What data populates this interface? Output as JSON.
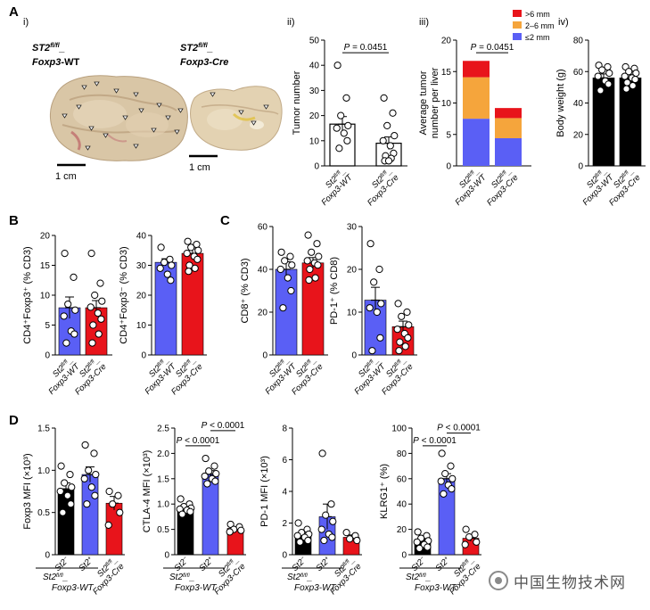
{
  "panel_labels": {
    "A": "A",
    "B": "B",
    "C": "C",
    "D": "D"
  },
  "subpanel_labels": {
    "i": "i)",
    "ii": "ii)",
    "iii": "iii)",
    "iv": "iv)"
  },
  "photos": {
    "left_genotype_line1": "ST2",
    "left_genotype_sup": "fl/fl",
    "left_genotype_suffix": "_",
    "left_genotype_line2": "Foxp3",
    "left_genotype_line2_suffix": "-WT",
    "right_genotype_line1": "ST2",
    "right_genotype_sup": "fl/fl",
    "right_genotype_suffix": "_",
    "right_genotype_line2": "Foxp3-Cre",
    "scale_label_left": "1 cm",
    "scale_label_right": "1 cm"
  },
  "group_labels": {
    "st2_wt": {
      "line1": "St2",
      "sup": "fl/fl",
      "suffix": "_",
      "line2": "Foxp3-WT"
    },
    "st2_cre": {
      "line1": "St2",
      "sup": "fl/fl",
      "suffix": "_",
      "line2": "Foxp3-Cre"
    },
    "st2_minus": {
      "base": "St2",
      "sup": "−"
    },
    "st2_plus": {
      "base": "St2",
      "sup": "+"
    },
    "d_under_line1": "St2",
    "d_under_sup": "fl/fl",
    "d_under_suffix": "_",
    "d_under_line2": "Foxp3-WT"
  },
  "colors": {
    "wt_blue": "#5a5ff5",
    "cre_red": "#e8141b",
    "black": "#000000",
    "orange": "#f5a53c",
    "bar_open": "#ffffff"
  },
  "watermark": {
    "icon": "wechat-circle-icon",
    "text": "中国生物技术网"
  },
  "chart_data": [
    {
      "id": "A_ii",
      "type": "bar",
      "ylabel": "Tumor  number",
      "ylim": [
        0,
        50
      ],
      "yticks": [
        0,
        10,
        20,
        30,
        40,
        50
      ],
      "categories": [
        "St2fl/fl_Foxp3-WT",
        "St2fl/fl_Foxp3-Cre"
      ],
      "series": [
        {
          "values": [
            16.6,
            9.0
          ],
          "sem": [
            3.0,
            2.5
          ],
          "fills": [
            "#ffffff",
            "#ffffff"
          ],
          "points": [
            [
              40,
              27,
              20,
              16,
              15,
              13,
              10,
              7
            ],
            [
              27,
              21,
              16,
              12,
              10,
              8,
              5,
              4,
              3,
              2,
              2
            ]
          ]
        }
      ],
      "annotations": [
        {
          "text": "P = 0.0451",
          "between": [
            0,
            1
          ],
          "y": 45
        }
      ]
    },
    {
      "id": "A_iii",
      "type": "bar",
      "stacked": true,
      "ylabel": "Average tumor number per liver",
      "ylim": [
        0,
        20
      ],
      "yticks": [
        0,
        5,
        10,
        15,
        20
      ],
      "categories": [
        "St2fl/fl_Foxp3-WT",
        "St2fl/fl_Foxp3-Cre"
      ],
      "series": [
        {
          "name": "≤2 mm",
          "color": "#5a5ff5",
          "values": [
            7.5,
            4.4
          ]
        },
        {
          "name": "2–6 mm",
          "color": "#f5a53c",
          "values": [
            6.6,
            3.2
          ]
        },
        {
          "name": ">6 mm",
          "color": "#e8141b",
          "values": [
            2.6,
            1.6
          ]
        }
      ],
      "legend": "top-right",
      "annotations": [
        {
          "text": "P = 0.0451",
          "between": [
            0,
            1
          ],
          "y": 18
        }
      ]
    },
    {
      "id": "A_iv",
      "type": "bar",
      "ylabel": "Body weight (g)",
      "ylim": [
        0,
        80
      ],
      "yticks": [
        0,
        20,
        40,
        60,
        80
      ],
      "categories": [
        "St2fl/fl_Foxp3-WT",
        "St2fl/fl_Foxp3-Cre"
      ],
      "series": [
        {
          "values": [
            56,
            56
          ],
          "sem": [
            2.5,
            2.0
          ],
          "fills": [
            "#000000",
            "#000000"
          ],
          "points": [
            [
              64,
              63,
              61,
              59,
              57,
              54,
              52,
              48
            ],
            [
              63,
              62,
              60,
              59,
              57,
              56,
              55,
              53,
              51,
              49
            ]
          ]
        }
      ]
    },
    {
      "id": "B_1",
      "type": "bar",
      "ylabel": "CD4⁺Foxp3⁺ (% CD3)",
      "ylim": [
        0,
        20
      ],
      "yticks": [
        0,
        5,
        10,
        15,
        20
      ],
      "categories": [
        "St2fl/fl_Foxp3-WT",
        "St2fl/fl_Foxp3-Cre"
      ],
      "series": [
        {
          "values": [
            7.9,
            7.9
          ],
          "sem": [
            1.8,
            1.2
          ],
          "fills": [
            "#5a5ff5",
            "#e8141b"
          ],
          "points": [
            [
              17,
              13,
              8.5,
              7.5,
              6.5,
              4,
              3.5,
              2
            ],
            [
              17,
              12,
              10,
              9,
              8,
              7,
              6,
              5,
              3.5,
              2
            ]
          ]
        }
      ]
    },
    {
      "id": "B_2",
      "type": "bar",
      "ylabel": "CD4⁺Foxp3⁻ (% CD3)",
      "ylim": [
        0,
        40
      ],
      "yticks": [
        0,
        10,
        20,
        30,
        40
      ],
      "categories": [
        "St2fl/fl_Foxp3-WT",
        "St2fl/fl_Foxp3-Cre"
      ],
      "series": [
        {
          "values": [
            31,
            34
          ],
          "sem": [
            1.2,
            1.5
          ],
          "fills": [
            "#5a5ff5",
            "#e8141b"
          ],
          "points": [
            [
              36,
              32,
              31,
              30,
              29,
              27,
              25
            ],
            [
              38,
              37,
              36,
              35,
              34,
              33,
              32,
              30,
              29,
              28
            ]
          ]
        }
      ]
    },
    {
      "id": "C_1",
      "type": "bar",
      "ylabel": "CD8⁺ (% CD3)",
      "ylim": [
        0,
        60
      ],
      "yticks": [
        0,
        20,
        40,
        60
      ],
      "categories": [
        "St2fl/fl_Foxp3-WT",
        "St2fl/fl_Foxp3-Cre"
      ],
      "series": [
        {
          "values": [
            40,
            43
          ],
          "sem": [
            3.5,
            2.5
          ],
          "fills": [
            "#5a5ff5",
            "#e8141b"
          ],
          "points": [
            [
              48,
              46,
              44,
              42,
              40,
              36,
              30,
              22
            ],
            [
              56,
              52,
              48,
              46,
              44,
              43,
              42,
              40,
              36,
              35
            ]
          ]
        }
      ]
    },
    {
      "id": "C_2",
      "type": "bar",
      "ylabel": "PD-1⁺ (% CD8)",
      "ylim": [
        0,
        30
      ],
      "yticks": [
        0,
        10,
        20,
        30
      ],
      "categories": [
        "St2fl/fl_Foxp3-WT",
        "St2fl/fl_Foxp3-Cre"
      ],
      "series": [
        {
          "values": [
            12.8,
            6.6
          ],
          "sem": [
            3.0,
            1.3
          ],
          "fills": [
            "#5a5ff5",
            "#e8141b"
          ],
          "points": [
            [
              26,
              20,
              17,
              12,
              11,
              10,
              4,
              1
            ],
            [
              12,
              10,
              9,
              7,
              6,
              5,
              4,
              3,
              2,
              1
            ]
          ]
        }
      ]
    },
    {
      "id": "D_1",
      "type": "bar",
      "ylabel": "Foxp3 MFI (×10³)",
      "ylim": [
        0,
        1.5
      ],
      "yticks": [
        0,
        0.5,
        1.0,
        1.5
      ],
      "categories": [
        "St2−",
        "St2+",
        "St2fl/fl_Foxp3-Cre"
      ],
      "series": [
        {
          "values": [
            0.78,
            0.95,
            0.61
          ],
          "sem": [
            0.07,
            0.09,
            0.08
          ],
          "fills": [
            "#000000",
            "#5a5ff5",
            "#e8141b"
          ],
          "points": [
            [
              1.05,
              0.95,
              0.85,
              0.8,
              0.75,
              0.7,
              0.6,
              0.5
            ],
            [
              1.3,
              1.2,
              1.0,
              0.95,
              0.9,
              0.8,
              0.7,
              0.6
            ],
            [
              0.75,
              0.7,
              0.6,
              0.5,
              0.35
            ]
          ]
        }
      ]
    },
    {
      "id": "D_2",
      "type": "bar",
      "ylabel": "CTLA-4 MFI (×10³)",
      "ylim": [
        0,
        2.5
      ],
      "yticks": [
        0,
        0.5,
        1.0,
        1.5,
        2.0,
        2.5
      ],
      "categories": [
        "St2−",
        "St2+",
        "St2fl/fl_Foxp3-Cre"
      ],
      "series": [
        {
          "values": [
            0.93,
            1.59,
            0.52
          ],
          "sem": [
            0.04,
            0.07,
            0.03
          ],
          "fills": [
            "#000000",
            "#5a5ff5",
            "#e8141b"
          ],
          "points": [
            [
              1.1,
              1.0,
              0.95,
              0.92,
              0.9,
              0.88,
              0.85,
              0.8
            ],
            [
              1.9,
              1.75,
              1.65,
              1.6,
              1.55,
              1.5,
              1.45,
              1.4
            ],
            [
              0.6,
              0.55,
              0.5,
              0.48,
              0.45
            ]
          ]
        }
      ],
      "annotations": [
        {
          "text": "P < 0.0001",
          "between": [
            0,
            1
          ],
          "y": 2.15
        },
        {
          "text": "P < 0.0001",
          "between": [
            1,
            2
          ],
          "y": 2.45
        }
      ]
    },
    {
      "id": "D_3",
      "type": "bar",
      "ylabel": "PD-1 MFI (×10³)",
      "ylim": [
        0,
        8
      ],
      "yticks": [
        0,
        2,
        4,
        6,
        8
      ],
      "categories": [
        "St2−",
        "St2+",
        "St2fl/fl_Foxp3-Cre"
      ],
      "series": [
        {
          "values": [
            1.3,
            2.4,
            1.1
          ],
          "sem": [
            0.2,
            0.8,
            0.15
          ],
          "fills": [
            "#000000",
            "#5a5ff5",
            "#e8141b"
          ],
          "points": [
            [
              2.0,
              1.6,
              1.4,
              1.3,
              1.2,
              1.1,
              0.9,
              0.8
            ],
            [
              6.4,
              3.2,
              2.5,
              2.1,
              1.6,
              1.3,
              1.1,
              0.9
            ],
            [
              1.4,
              1.2,
              1.0,
              0.9
            ]
          ]
        }
      ]
    },
    {
      "id": "D_4",
      "type": "bar",
      "ylabel": "KLRG1⁺ (%)",
      "ylim": [
        0,
        100
      ],
      "yticks": [
        0,
        20,
        40,
        60,
        80,
        100
      ],
      "categories": [
        "St2−",
        "St2+",
        "St2fl/fl_Foxp3-Cre"
      ],
      "series": [
        {
          "values": [
            12,
            60,
            13
          ],
          "sem": [
            2.2,
            4,
            2.5
          ],
          "fills": [
            "#000000",
            "#5a5ff5",
            "#e8141b"
          ],
          "points": [
            [
              18,
              15,
              13,
              11,
              10,
              8,
              6,
              5
            ],
            [
              80,
              70,
              64,
              60,
              58,
              55,
              52,
              48
            ],
            [
              20,
              16,
              14,
              10,
              8
            ]
          ]
        }
      ],
      "annotations": [
        {
          "text": "P < 0.0001",
          "between": [
            0,
            1
          ],
          "y": 86
        },
        {
          "text": "P < 0.0001",
          "between": [
            1,
            2
          ],
          "y": 96
        }
      ]
    }
  ]
}
